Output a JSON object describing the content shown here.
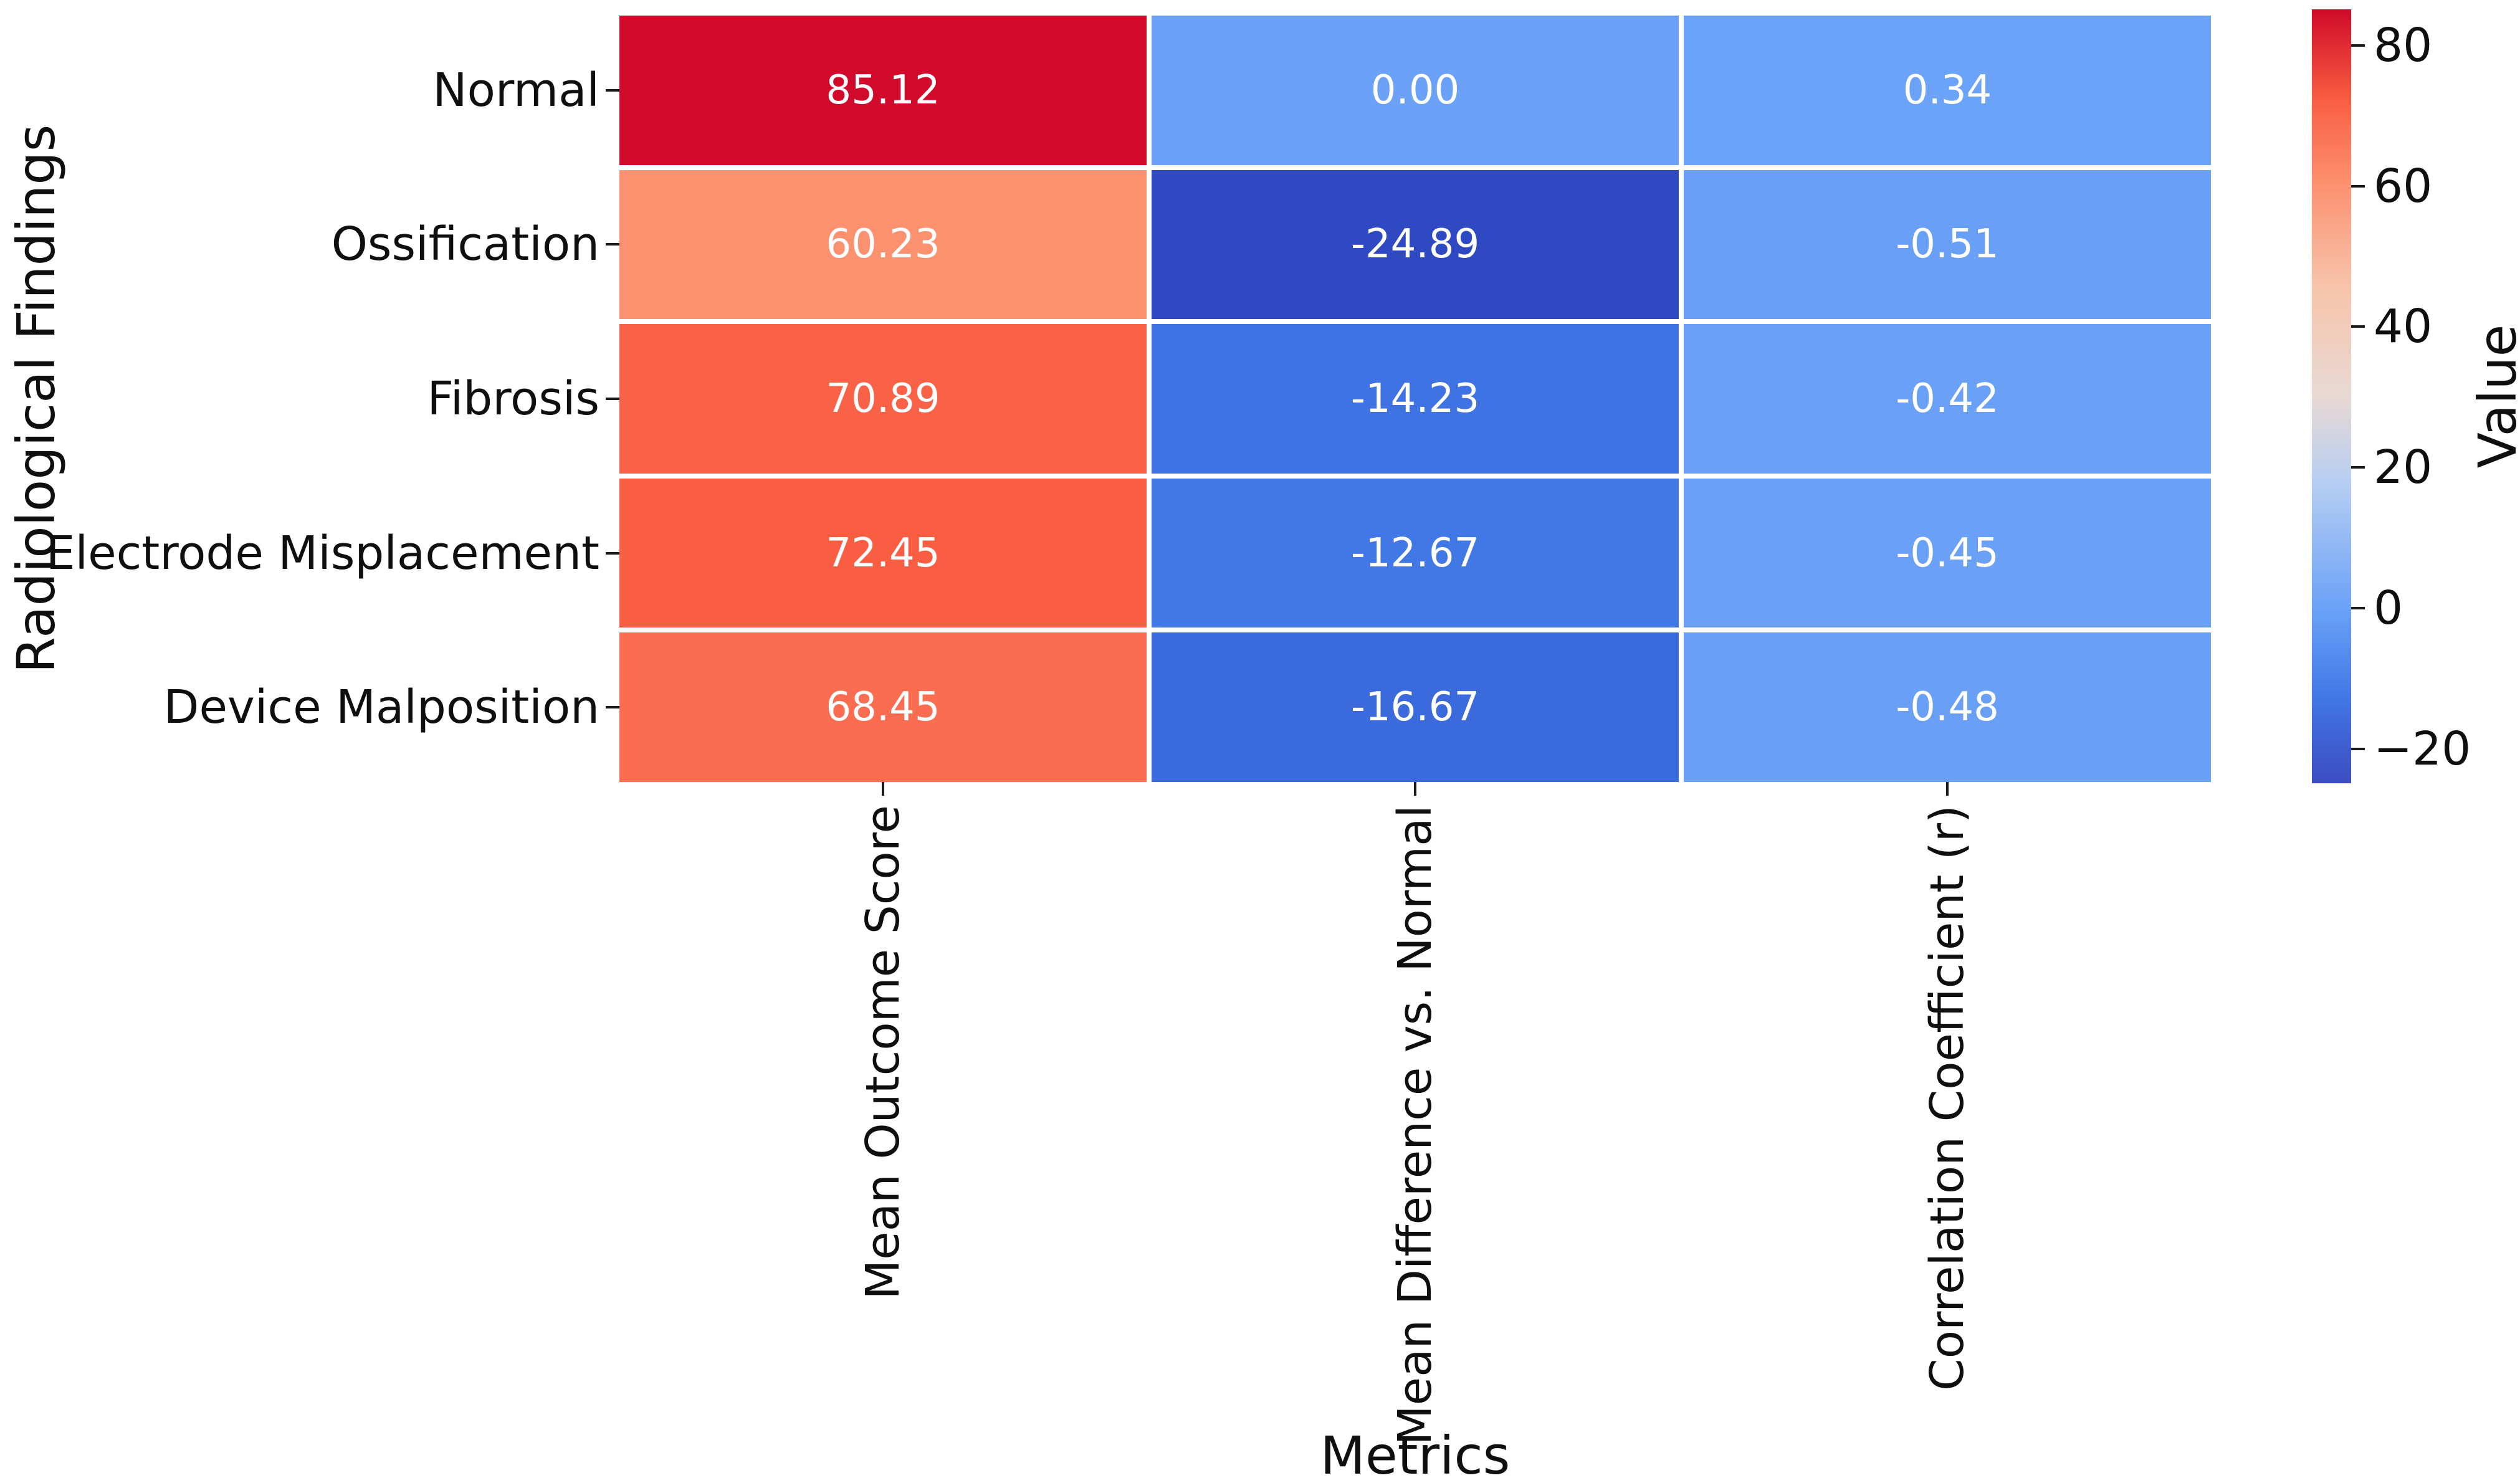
{
  "figure": {
    "background": "#ffffff",
    "text_color": "#0f0f0f"
  },
  "chart_data": {
    "type": "heatmap",
    "title": "",
    "xlabel": "Metrics",
    "ylabel": "Radiological Findings",
    "columns": [
      "Mean Outcome Score",
      "Mean Difference vs. Normal",
      "Correlation Coefficient (r)"
    ],
    "rows": [
      "Normal",
      "Ossification",
      "Fibrosis",
      "Electrode Misplacement",
      "Device Malposition"
    ],
    "values": [
      [
        85.12,
        0.0,
        0.34
      ],
      [
        60.23,
        -24.89,
        -0.51
      ],
      [
        70.89,
        -14.23,
        -0.42
      ],
      [
        72.45,
        -12.67,
        -0.45
      ],
      [
        68.45,
        -16.67,
        -0.48
      ]
    ],
    "annotations": [
      [
        "85.12",
        "0.00",
        "0.34"
      ],
      [
        "60.23",
        "-24.89",
        "-0.51"
      ],
      [
        "70.89",
        "-14.23",
        "-0.42"
      ],
      [
        "72.45",
        "-12.67",
        "-0.45"
      ],
      [
        "68.45",
        "-16.67",
        "-0.48"
      ]
    ],
    "cell_colors": [
      [
        "#d10a2b",
        "#6ba2f7",
        "#6ba3f8"
      ],
      [
        "#fc9170",
        "#2e49c1",
        "#69a0f6"
      ],
      [
        "#fa6248",
        "#3f73e3",
        "#6aa0f6"
      ],
      [
        "#f95d42",
        "#4277e6",
        "#6aa0f6"
      ],
      [
        "#fa6d50",
        "#3b6adc",
        "#69a0f6"
      ]
    ],
    "annotation_color": "#ffffff",
    "grid_line_color": "#ffffff",
    "colormap": "coolwarm",
    "vmin": -24.89,
    "vmax": 85.12,
    "legend_position": "right",
    "colorbar": {
      "label": "Value",
      "tick_labels": [
        "80",
        "60",
        "40",
        "20",
        "0",
        "−20"
      ],
      "tick_values": [
        80,
        60,
        40,
        20,
        0,
        -20
      ],
      "gradient_stops": [
        {
          "pos": 0,
          "color": "#cf0a28"
        },
        {
          "pos": 11.5,
          "color": "#f95d42"
        },
        {
          "pos": 22.6,
          "color": "#fc9170"
        },
        {
          "pos": 36,
          "color": "#f7c4ab"
        },
        {
          "pos": 50,
          "color": "#e8d9d3"
        },
        {
          "pos": 61,
          "color": "#b7cef2"
        },
        {
          "pos": 77.4,
          "color": "#6ba2f7"
        },
        {
          "pos": 89,
          "color": "#4277e6"
        },
        {
          "pos": 100,
          "color": "#3b4cc0"
        }
      ]
    }
  }
}
